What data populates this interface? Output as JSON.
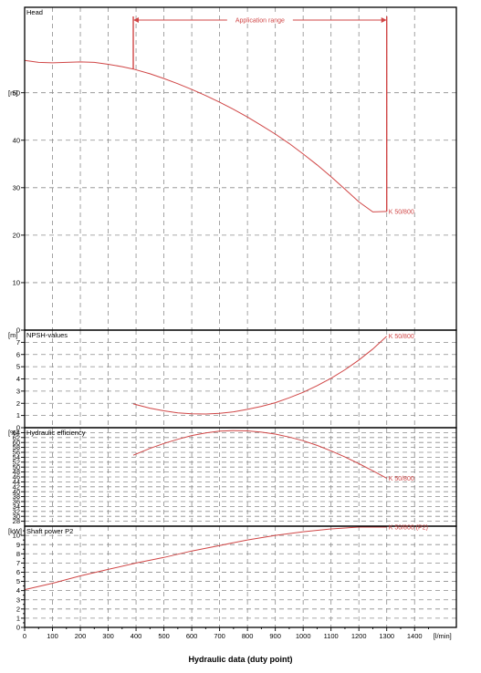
{
  "caption": "Hydraulic data (duty point)",
  "colors": {
    "curve": "#d04646",
    "grid": "#8c8c8c",
    "frame": "#000000"
  },
  "x_axis": {
    "ticks": [
      "0",
      "100",
      "200",
      "300",
      "400",
      "500",
      "600",
      "700",
      "800",
      "900",
      "1000",
      "1100",
      "1200",
      "1300",
      "1400"
    ],
    "unit_label": "[l/min]",
    "range": [
      0,
      1550
    ]
  },
  "application_range": {
    "label": "Application range",
    "x": [
      390,
      1300
    ]
  },
  "chart_data": [
    {
      "type": "line",
      "title": "Head",
      "unit_label": "[m]",
      "ylim": [
        0,
        68
      ],
      "y_ticks": [
        0,
        10,
        20,
        30,
        40,
        50
      ],
      "minor_ticks": false,
      "series": [
        {
          "name": "K 50/800",
          "x": [
            0,
            50,
            100,
            150,
            200,
            250,
            300,
            350,
            390,
            450,
            500,
            550,
            600,
            650,
            700,
            750,
            800,
            850,
            900,
            950,
            1000,
            1050,
            1100,
            1150,
            1200,
            1250,
            1300
          ],
          "y": [
            56.8,
            56.4,
            56.3,
            56.4,
            56.5,
            56.4,
            56.0,
            55.5,
            55.0,
            54.0,
            53.0,
            51.9,
            50.7,
            49.4,
            48.0,
            46.5,
            44.9,
            43.1,
            41.3,
            39.3,
            37.1,
            34.8,
            32.3,
            29.7,
            27.0,
            24.9,
            25.0
          ]
        }
      ]
    },
    {
      "type": "line",
      "title": "NPSH-values",
      "unit_label": "[m]",
      "ylim": [
        0,
        8
      ],
      "y_ticks": [
        0,
        1,
        2,
        3,
        4,
        5,
        6,
        7
      ],
      "minor_ticks": false,
      "series": [
        {
          "name": "K 50/800",
          "x": [
            390,
            450,
            500,
            550,
            600,
            650,
            700,
            750,
            800,
            850,
            900,
            950,
            1000,
            1050,
            1100,
            1150,
            1200,
            1250,
            1300
          ],
          "y": [
            1.95,
            1.6,
            1.38,
            1.22,
            1.14,
            1.12,
            1.18,
            1.3,
            1.5,
            1.75,
            2.05,
            2.45,
            2.9,
            3.45,
            4.05,
            4.75,
            5.55,
            6.45,
            7.5
          ]
        }
      ]
    },
    {
      "type": "line",
      "title": "Hydraulic efficiency",
      "unit_label": "[%]",
      "ylim": [
        26,
        66
      ],
      "y_ticks": [
        28,
        30,
        32,
        34,
        36,
        38,
        40,
        42,
        44,
        46,
        48,
        50,
        52,
        54,
        56,
        58,
        60,
        62,
        64
      ],
      "minor_ticks": false,
      "series": [
        {
          "name": "K 50/800",
          "x": [
            390,
            450,
            500,
            550,
            600,
            650,
            700,
            750,
            800,
            850,
            900,
            950,
            1000,
            1050,
            1100,
            1150,
            1200,
            1250,
            1300
          ],
          "y": [
            54.8,
            57.6,
            59.6,
            61.3,
            62.8,
            63.9,
            64.6,
            64.8,
            64.7,
            64.2,
            63.4,
            62.2,
            60.7,
            58.8,
            56.6,
            54.1,
            51.4,
            48.5,
            45.5
          ]
        }
      ]
    },
    {
      "type": "line",
      "title": "Shaft power P2",
      "unit_label": "[kW]",
      "ylim": [
        0,
        11
      ],
      "y_ticks": [
        0,
        1,
        2,
        3,
        4,
        5,
        6,
        7,
        8,
        9,
        10
      ],
      "minor_ticks": true,
      "series": [
        {
          "name": "K 50/800 (P2)",
          "x": [
            0,
            100,
            200,
            300,
            400,
            500,
            600,
            700,
            800,
            900,
            1000,
            1100,
            1200,
            1300
          ],
          "y": [
            4.1,
            4.8,
            5.6,
            6.3,
            7.0,
            7.6,
            8.3,
            8.9,
            9.5,
            10.0,
            10.4,
            10.7,
            10.9,
            10.9
          ]
        }
      ]
    }
  ]
}
